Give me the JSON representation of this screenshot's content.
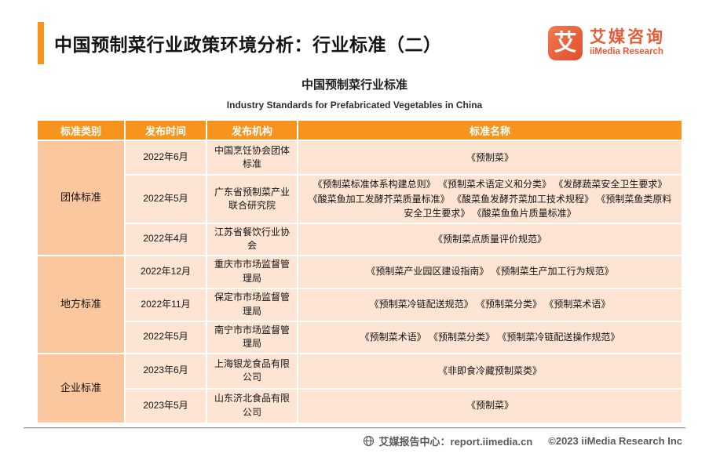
{
  "page_title": "中国预制菜行业政策环境分析：行业标准（二）",
  "logo": {
    "icon": "iimedia-logo-icon",
    "icon_char": "艾",
    "name_cn": "艾媒咨询",
    "name_en": "iiMedia Research"
  },
  "subtitle": {
    "cn": "中国预制菜行业标准",
    "en": "Industry Standards for Prefabricated Vegetables in China"
  },
  "table": {
    "headers": [
      "标准类别",
      "发布时间",
      "发布机构",
      "标准名称"
    ],
    "groups": [
      {
        "category": "团体标准",
        "rows": [
          {
            "date": "2022年6月",
            "org": "中国烹饪协会团体标准",
            "names": "《预制菜》"
          },
          {
            "date": "2022年5月",
            "org": "广东省预制菜产业联合研究院",
            "names": "《预制菜标准体系构建总则》 《预制菜术语定义和分类》 《发酵蔬菜安全卫生要求》 《酸菜鱼加工发酵芥菜质量标准》 《酸菜鱼发酵芥菜加工技术规程》 《预制菜鱼类原料安全卫生要求》 《酸菜鱼鱼片质量标准》"
          },
          {
            "date": "2022年4月",
            "org": "江苏省餐饮行业协会",
            "names": "《预制菜点质量评价规范》"
          }
        ]
      },
      {
        "category": "地方标准",
        "rows": [
          {
            "date": "2022年12月",
            "org": "重庆市市场监督管理局",
            "names": "《预制菜产业园区建设指南》 《预制菜生产加工行为规范》"
          },
          {
            "date": "2022年11月",
            "org": "保定市市场监督管理局",
            "names": "《预制菜冷链配送规范》 《预制菜分类》 《预制菜术语》"
          },
          {
            "date": "2022年5月",
            "org": "南宁市市场监督管理局",
            "names": "《预制菜术语》 《预制菜分类》 《预制菜冷链配送操作规范》"
          }
        ]
      },
      {
        "category": "企业标准",
        "rows": [
          {
            "date": "2023年6月",
            "org": "上海银龙食品有限公司",
            "names": "《非即食冷藏预制菜类》"
          },
          {
            "date": "2023年5月",
            "org": "山东济北食品有限公司",
            "names": "《预制菜》"
          }
        ]
      }
    ]
  },
  "footer": {
    "icon": "globe-icon",
    "report_center": "艾媒报告中心：report.iimedia.cn",
    "copyright": "©2023  iiMedia Research  Inc"
  },
  "colors": {
    "header_orange": "#F7941E",
    "category_bg": "#FBC79E",
    "cell_bg": "#FDE4D3",
    "logo_orange": "#E65A35",
    "footer_gray": "#595959"
  }
}
